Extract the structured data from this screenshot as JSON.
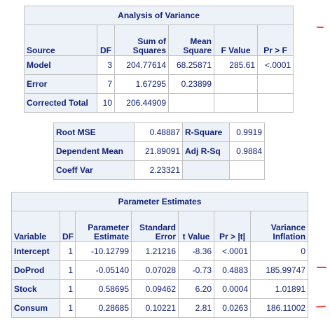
{
  "anova": {
    "title": "Analysis of Variance",
    "headers": [
      "Source",
      "DF",
      "Sum of Squares",
      "Mean Square",
      "F Value",
      "Pr > F"
    ],
    "header_lines": {
      "sum_sq": [
        "Sum of",
        "Squares"
      ],
      "mean_sq": [
        "Mean",
        "Square"
      ]
    },
    "rows": [
      {
        "source": "Model",
        "df": "3",
        "ss": "204.77614",
        "ms": "68.25871",
        "f": "285.61",
        "p": "<.0001"
      },
      {
        "source": "Error",
        "df": "7",
        "ss": "1.67295",
        "ms": "0.23899",
        "f": "",
        "p": ""
      },
      {
        "source": "Corrected Total",
        "df": "10",
        "ss": "206.44909",
        "ms": "",
        "f": "",
        "p": ""
      }
    ]
  },
  "fit": {
    "rows": [
      {
        "label1": "Root MSE",
        "value1": "0.48887",
        "label2": "R-Square",
        "value2": "0.9919"
      },
      {
        "label1": "Dependent Mean",
        "value1": "21.89091",
        "label2": "Adj R-Sq",
        "value2": "0.9884"
      },
      {
        "label1": "Coeff Var",
        "value1": "2.23321",
        "label2": "",
        "value2": ""
      }
    ]
  },
  "params": {
    "title": "Parameter Estimates",
    "headers": [
      "Variable",
      "DF",
      "Parameter Estimate",
      "Standard Error",
      "t Value",
      "Pr > |t|",
      "Variance Inflation"
    ],
    "header_lines": {
      "estimate": [
        "Parameter",
        "Estimate"
      ],
      "stderr": [
        "Standard",
        "Error"
      ],
      "vif": [
        "Variance",
        "Inflation"
      ]
    },
    "rows": [
      {
        "variable": "Intercept",
        "df": "1",
        "estimate": "-10.12799",
        "stderr": "1.21216",
        "t": "-8.36",
        "p": "<.0001",
        "vif": "0"
      },
      {
        "variable": "DoProd",
        "df": "1",
        "estimate": "-0.05140",
        "stderr": "0.07028",
        "t": "-0.73",
        "p": "0.4883",
        "vif": "185.99747"
      },
      {
        "variable": "Stock",
        "df": "1",
        "estimate": "0.58695",
        "stderr": "0.09462",
        "t": "6.20",
        "p": "0.0004",
        "vif": "1.01891"
      },
      {
        "variable": "Consum",
        "df": "1",
        "estimate": "0.28685",
        "stderr": "0.10221",
        "t": "2.81",
        "p": "0.0263",
        "vif": "186.11002"
      }
    ]
  },
  "colors": {
    "header_bg": "#edf2f9",
    "text": "#112277",
    "border": "#c1c1c1",
    "annotation": "#e8443a"
  }
}
